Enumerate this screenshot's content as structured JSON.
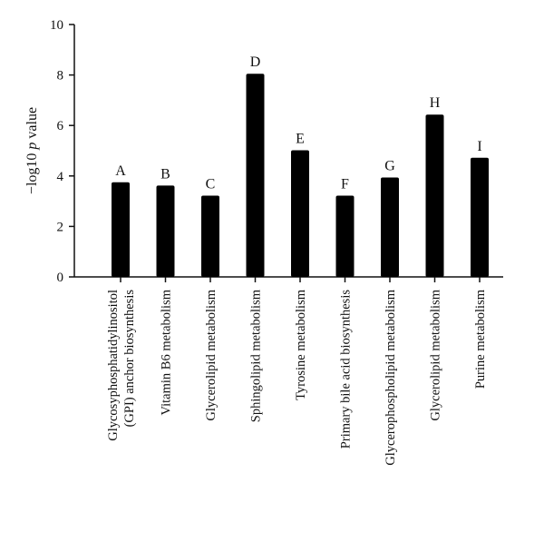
{
  "chart_data": {
    "type": "bar",
    "categories": [
      [
        "Glycosyphosphatidylinositol",
        "(GPI) anchor biosynthesis"
      ],
      [
        "Vitamin B6 metabolism"
      ],
      [
        "Glycerolipid metabolism"
      ],
      [
        "Sphingolipid metabolism"
      ],
      [
        "Tyrosine metabolism"
      ],
      [
        "Primary bile acid biosynthesis"
      ],
      [
        "Glycerophospholipid metabolism"
      ],
      [
        "Glycerolipid metabolism"
      ],
      [
        "Purine metabolism"
      ]
    ],
    "bar_labels": [
      "A",
      "B",
      "C",
      "D",
      "E",
      "F",
      "G",
      "H",
      "I"
    ],
    "values": [
      3.75,
      3.62,
      3.22,
      8.05,
      5.02,
      3.22,
      3.94,
      6.43,
      4.72
    ],
    "ylabel": {
      "prefix": "−log10 ",
      "italic": "p",
      "suffix": " value"
    },
    "ylim": [
      0,
      10
    ],
    "yticks": [
      "0",
      "2",
      "4",
      "6",
      "8",
      "10"
    ],
    "bar_color": "#000000",
    "grid": false
  }
}
